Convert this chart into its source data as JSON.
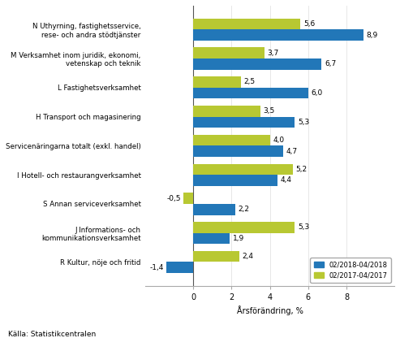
{
  "categories": [
    "N Uthyrning, fastighetsservice,\nrese- och andra stödtjänster",
    "M Verksamhet inom juridik, ekonomi,\nvetenskap och teknik",
    "L Fastighetsverksamhet",
    "H Transport och magasinering",
    "Servicenäringarna totalt (exkl. handel)",
    "I Hotell- och restaurangverksamhet",
    "S Annan serviceverksamhet",
    "J Informations- och\nkommunikationsverksamhet",
    "R Kultur, nöje och fritid"
  ],
  "series1_values": [
    8.9,
    6.7,
    6.0,
    5.3,
    4.7,
    4.4,
    2.2,
    1.9,
    -1.4
  ],
  "series2_values": [
    5.6,
    3.7,
    2.5,
    3.5,
    4.0,
    5.2,
    -0.5,
    5.3,
    2.4
  ],
  "series1_label": "02/2018-04/2018",
  "series2_label": "02/2017-04/2017",
  "series1_color": "#2277b8",
  "series2_color": "#b8c832",
  "xlabel": "Årsförändring, %",
  "source": "Källa: Statistikcentralen",
  "xlim": [
    -2.5,
    10.5
  ],
  "xticks": [
    0,
    2,
    4,
    6,
    8
  ],
  "bar_height": 0.38,
  "figsize": [
    4.93,
    4.16
  ],
  "dpi": 100,
  "label_fontsize": 6.2,
  "tick_fontsize": 7,
  "value_fontsize": 6.5
}
